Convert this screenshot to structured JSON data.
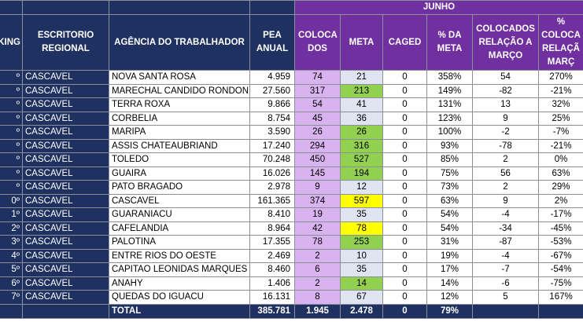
{
  "sheet": {
    "month": "JUNHO",
    "headers": {
      "ranking": "KING",
      "escritorio": "ESCRITORIO REGIONAL",
      "agencia": "AGÊNCIA DO TRABALHADOR",
      "pea": "PEA ANUAL",
      "colocados": "COLOCA DOS",
      "meta": "META",
      "caged": "CAGED",
      "pct_meta": "% DA META",
      "colocados_marco": "COLOCADOS RELAÇÃO A MARÇO",
      "pct_colocados_marco": "% COLOCA RELAÇÃ MARÇ"
    },
    "rows": [
      {
        "rank": "º",
        "escritorio": "CASCAVEL",
        "agencia": "NOVA SANTA ROSA",
        "pea": "4.959",
        "colocados": "74",
        "meta": "21",
        "caged": "0",
        "pct_meta": "358%",
        "col_marco": "54",
        "pct_marco": "270%",
        "meta_color": "none"
      },
      {
        "rank": "º",
        "escritorio": "CASCAVEL",
        "agencia": "MARECHAL CANDIDO RONDON",
        "pea": "27.560",
        "colocados": "317",
        "meta": "213",
        "caged": "0",
        "pct_meta": "149%",
        "col_marco": "-82",
        "pct_marco": "-21%",
        "meta_color": "green"
      },
      {
        "rank": "º",
        "escritorio": "CASCAVEL",
        "agencia": "TERRA ROXA",
        "pea": "9.866",
        "colocados": "54",
        "meta": "41",
        "caged": "0",
        "pct_meta": "131%",
        "col_marco": "13",
        "pct_marco": "32%",
        "meta_color": "none"
      },
      {
        "rank": "º",
        "escritorio": "CASCAVEL",
        "agencia": "CORBELIA",
        "pea": "8.754",
        "colocados": "45",
        "meta": "36",
        "caged": "0",
        "pct_meta": "123%",
        "col_marco": "9",
        "pct_marco": "25%",
        "meta_color": "none"
      },
      {
        "rank": "º",
        "escritorio": "CASCAVEL",
        "agencia": "MARIPA",
        "pea": "3.590",
        "colocados": "26",
        "meta": "26",
        "caged": "0",
        "pct_meta": "100%",
        "col_marco": "-2",
        "pct_marco": "-7%",
        "meta_color": "green"
      },
      {
        "rank": "º",
        "escritorio": "CASCAVEL",
        "agencia": "ASSIS CHATEAUBRIAND",
        "pea": "17.240",
        "colocados": "294",
        "meta": "316",
        "caged": "0",
        "pct_meta": "93%",
        "col_marco": "-78",
        "pct_marco": "-21%",
        "meta_color": "green"
      },
      {
        "rank": "º",
        "escritorio": "CASCAVEL",
        "agencia": "TOLEDO",
        "pea": "70.248",
        "colocados": "450",
        "meta": "527",
        "caged": "0",
        "pct_meta": "85%",
        "col_marco": "2",
        "pct_marco": "0%",
        "meta_color": "green"
      },
      {
        "rank": "º",
        "escritorio": "CASCAVEL",
        "agencia": "GUAIRA",
        "pea": "16.026",
        "colocados": "145",
        "meta": "194",
        "caged": "0",
        "pct_meta": "75%",
        "col_marco": "56",
        "pct_marco": "63%",
        "meta_color": "green"
      },
      {
        "rank": "º",
        "escritorio": "CASCAVEL",
        "agencia": "PATO BRAGADO",
        "pea": "2.978",
        "colocados": "9",
        "meta": "12",
        "caged": "0",
        "pct_meta": "73%",
        "col_marco": "2",
        "pct_marco": "29%",
        "meta_color": "none"
      },
      {
        "rank": "0º",
        "escritorio": "CASCAVEL",
        "agencia": "CASCAVEL",
        "pea": "161.365",
        "colocados": "374",
        "meta": "597",
        "caged": "0",
        "pct_meta": "63%",
        "col_marco": "9",
        "pct_marco": "2%",
        "meta_color": "yellow"
      },
      {
        "rank": "1º",
        "escritorio": "CASCAVEL",
        "agencia": "GUARANIACU",
        "pea": "8.410",
        "colocados": "19",
        "meta": "35",
        "caged": "0",
        "pct_meta": "54%",
        "col_marco": "-4",
        "pct_marco": "-17%",
        "meta_color": "none"
      },
      {
        "rank": "2º",
        "escritorio": "CASCAVEL",
        "agencia": "CAFELANDIA",
        "pea": "8.964",
        "colocados": "42",
        "meta": "78",
        "caged": "0",
        "pct_meta": "54%",
        "col_marco": "-34",
        "pct_marco": "-45%",
        "meta_color": "yellow"
      },
      {
        "rank": "3º",
        "escritorio": "CASCAVEL",
        "agencia": "PALOTINA",
        "pea": "17.355",
        "colocados": "78",
        "meta": "253",
        "caged": "0",
        "pct_meta": "31%",
        "col_marco": "-87",
        "pct_marco": "-53%",
        "meta_color": "green"
      },
      {
        "rank": "4º",
        "escritorio": "CASCAVEL",
        "agencia": "ENTRE RIOS DO OESTE",
        "pea": "2.469",
        "colocados": "2",
        "meta": "10",
        "caged": "0",
        "pct_meta": "19%",
        "col_marco": "-4",
        "pct_marco": "-67%",
        "meta_color": "none"
      },
      {
        "rank": "5º",
        "escritorio": "CASCAVEL",
        "agencia": "CAPITAO LEONIDAS MARQUES",
        "pea": "8.460",
        "colocados": "6",
        "meta": "35",
        "caged": "0",
        "pct_meta": "17%",
        "col_marco": "-7",
        "pct_marco": "-54%",
        "meta_color": "none"
      },
      {
        "rank": "6º",
        "escritorio": "CASCAVEL",
        "agencia": "ANAHY",
        "pea": "1.406",
        "colocados": "2",
        "meta": "14",
        "caged": "0",
        "pct_meta": "14%",
        "col_marco": "-6",
        "pct_marco": "-75%",
        "meta_color": "green"
      },
      {
        "rank": "7º",
        "escritorio": "CASCAVEL",
        "agencia": "QUEDAS DO IGUACU",
        "pea": "16.131",
        "colocados": "8",
        "meta": "67",
        "caged": "0",
        "pct_meta": "12%",
        "col_marco": "5",
        "pct_marco": "167%",
        "meta_color": "none"
      }
    ],
    "total": {
      "label": "TOTAL",
      "pea": "385.781",
      "colocados": "1.945",
      "meta": "2.478",
      "caged": "0",
      "pct_meta": "79%"
    },
    "colors": {
      "navy": "#1f3160",
      "purple": "#7030a0",
      "lavender": "#d9b3f0",
      "meta_blue": "#dfe4f0",
      "green": "#92d050",
      "yellow": "#ffff00"
    }
  }
}
